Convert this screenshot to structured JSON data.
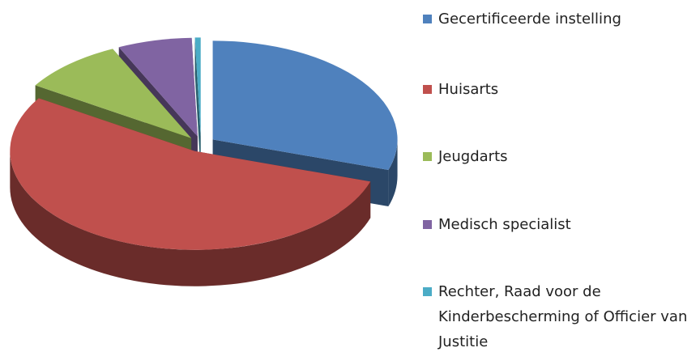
{
  "chart_data": {
    "type": "pie",
    "categories": [
      "Gecertificeerde instelling",
      "Huisarts",
      "Jeugdarts",
      "Medisch specialist",
      "Rechter, Raad voor de Kinderbescherming of Officier van Justitie"
    ],
    "values": [
      30,
      54,
      9,
      6.5,
      0.5
    ],
    "colors": [
      "#4f81bd",
      "#c0504d",
      "#9bbb59",
      "#8064a2",
      "#4bacc6"
    ]
  }
}
